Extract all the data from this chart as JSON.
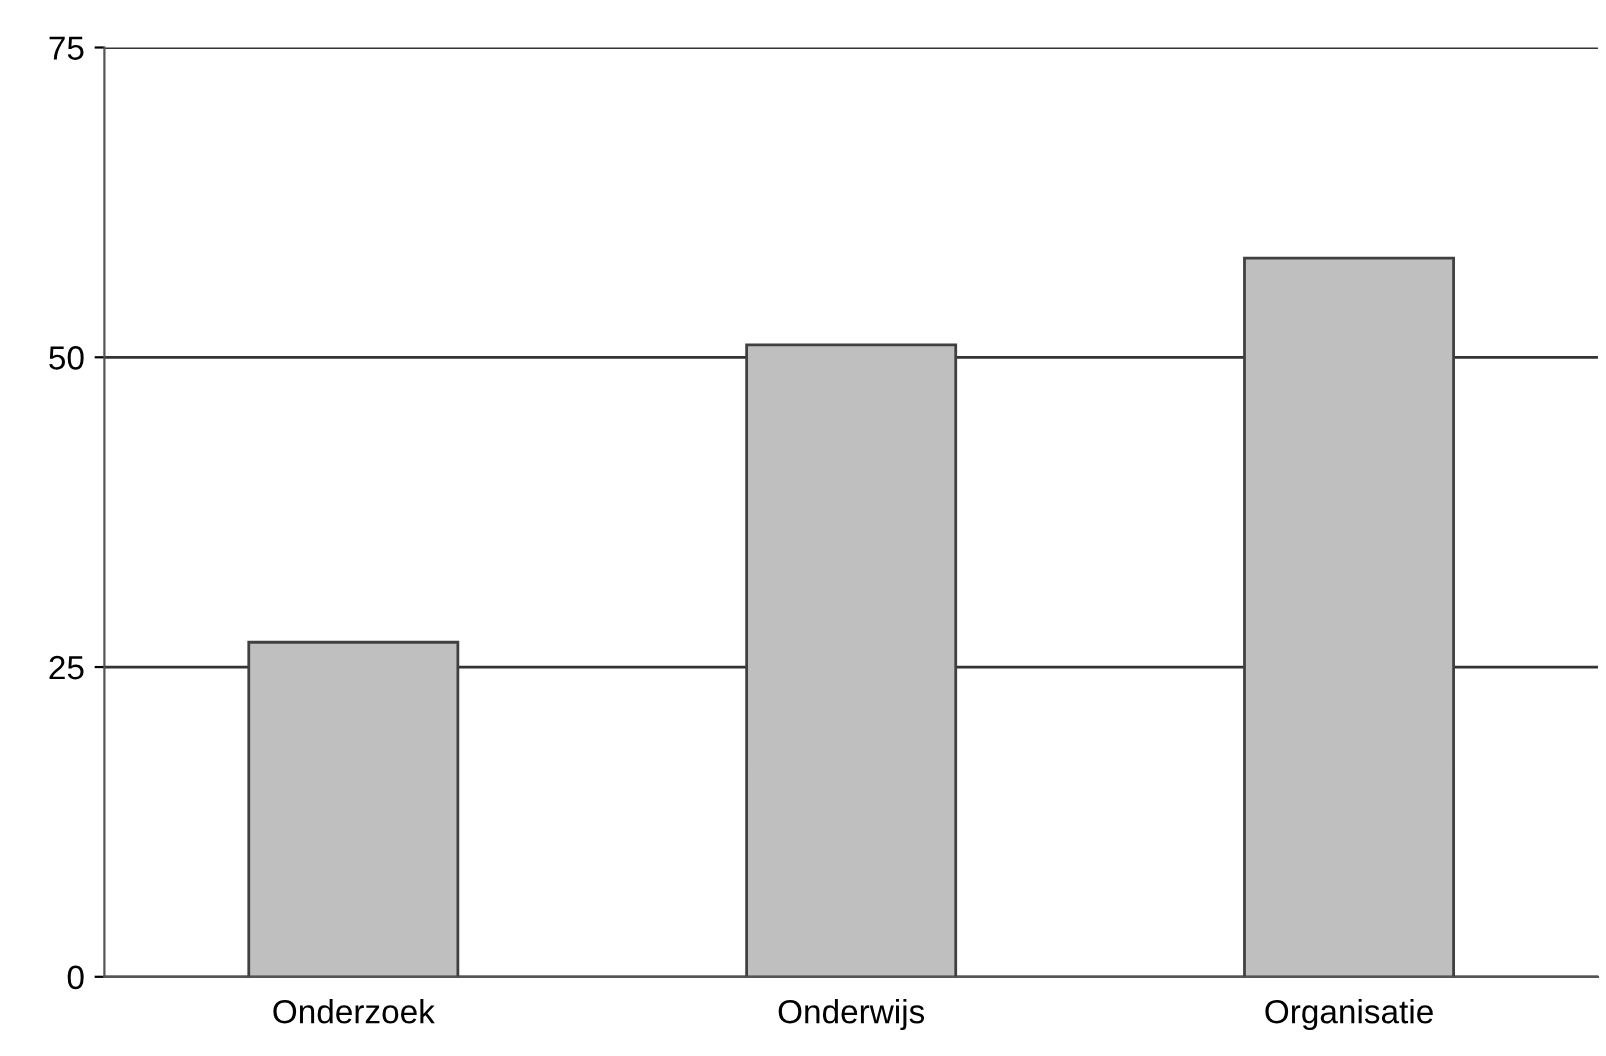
{
  "chart_data": {
    "type": "bar",
    "categories": [
      "Onderzoek",
      "Onderwijs",
      "Organisatie"
    ],
    "values": [
      27,
      51,
      58
    ],
    "color": "#bfbfbf",
    "ylim": [
      0,
      75
    ],
    "yticks": [
      0,
      25,
      50,
      75
    ],
    "grid": "y"
  }
}
